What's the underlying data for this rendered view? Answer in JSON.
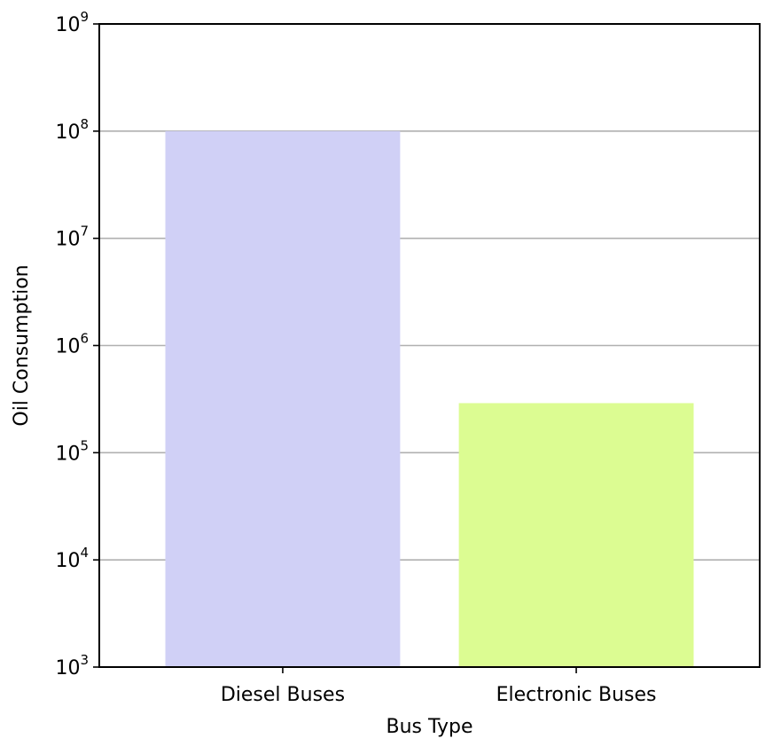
{
  "chart_data": {
    "type": "bar",
    "title": "",
    "xlabel": "Bus Type",
    "ylabel": "Oil Consumption",
    "y_scale": "log",
    "ylim": [
      1000,
      1000000000
    ],
    "y_ticks": [
      {
        "value": 1000,
        "base": "10",
        "exp": "3"
      },
      {
        "value": 10000,
        "base": "10",
        "exp": "4"
      },
      {
        "value": 100000,
        "base": "10",
        "exp": "5"
      },
      {
        "value": 1000000,
        "base": "10",
        "exp": "6"
      },
      {
        "value": 10000000,
        "base": "10",
        "exp": "7"
      },
      {
        "value": 100000000,
        "base": "10",
        "exp": "8"
      },
      {
        "value": 1000000000,
        "base": "10",
        "exp": "9"
      }
    ],
    "categories": [
      "Diesel Buses",
      "Electronic Buses"
    ],
    "values": [
      100000000,
      290000
    ],
    "colors": [
      "#d0d0f6",
      "#dcfc92"
    ],
    "grid": "y-major",
    "legend": "none"
  }
}
